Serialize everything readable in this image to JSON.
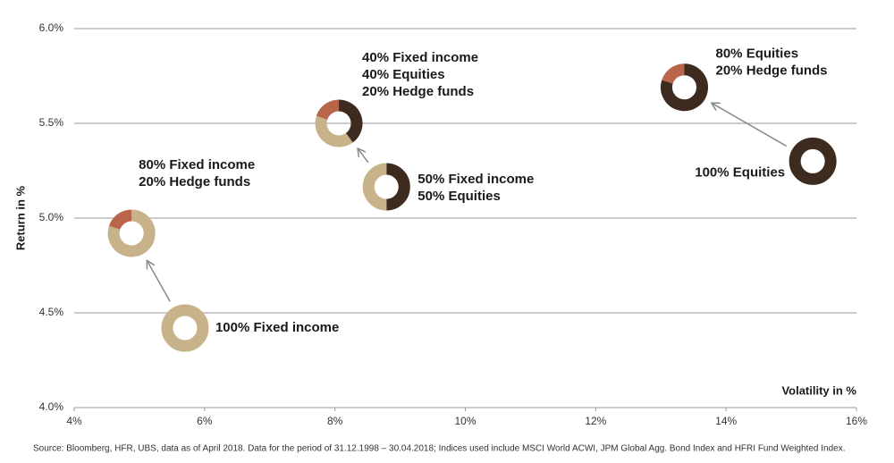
{
  "chart_data": {
    "type": "scatter",
    "xlabel": "Volatility in %",
    "ylabel": "Return in %",
    "source": "Source: Bloomberg, HFR, UBS, data as of April 2018. Data for the period of 31.12.1998 – 30.04.2018; Indices used include MSCI World ACWI, JPM Global Agg. Bond Index and HFRI Fund Weighted Index.",
    "xlim": [
      4,
      16
    ],
    "ylim": [
      4.0,
      6.0
    ],
    "xticks": [
      {
        "value": 4,
        "label": "4%"
      },
      {
        "value": 6,
        "label": "6%"
      },
      {
        "value": 8,
        "label": "8%"
      },
      {
        "value": 10,
        "label": "10%"
      },
      {
        "value": 12,
        "label": "12%"
      },
      {
        "value": 14,
        "label": "14%"
      },
      {
        "value": 16,
        "label": "16%"
      }
    ],
    "yticks": [
      {
        "value": 4.0,
        "label": "4.0%"
      },
      {
        "value": 4.5,
        "label": "4.5%"
      },
      {
        "value": 5.0,
        "label": "5.0%"
      },
      {
        "value": 5.5,
        "label": "5.5%"
      },
      {
        "value": 6.0,
        "label": "6.0%"
      }
    ],
    "grid": true,
    "segment_colors": [
      "#3d2b1f",
      "#c8b28a",
      "#b9654a"
    ],
    "points": [
      {
        "label": [
          "100% Fixed income"
        ],
        "x": 5.7,
        "y": 4.42,
        "weights": [
          0,
          100,
          0
        ]
      },
      {
        "label": [
          "80% Fixed income",
          "20% Hedge funds"
        ],
        "x": 4.88,
        "y": 4.92,
        "weights": [
          0,
          80,
          20
        ]
      },
      {
        "label": [
          "50% Fixed income",
          "50% Equities"
        ],
        "x": 8.79,
        "y": 5.165,
        "weights": [
          50,
          50,
          0
        ]
      },
      {
        "label": [
          "40% Fixed income",
          "40% Equities",
          "20% Hedge funds"
        ],
        "x": 8.06,
        "y": 5.5,
        "weights": [
          40,
          40,
          20
        ]
      },
      {
        "label": [
          "100% Equities"
        ],
        "x": 15.33,
        "y": 5.3,
        "weights": [
          100,
          0,
          0
        ]
      },
      {
        "label": [
          "80% Equities",
          "20% Hedge funds"
        ],
        "x": 13.36,
        "y": 5.69,
        "weights": [
          80,
          0,
          20
        ]
      }
    ]
  }
}
